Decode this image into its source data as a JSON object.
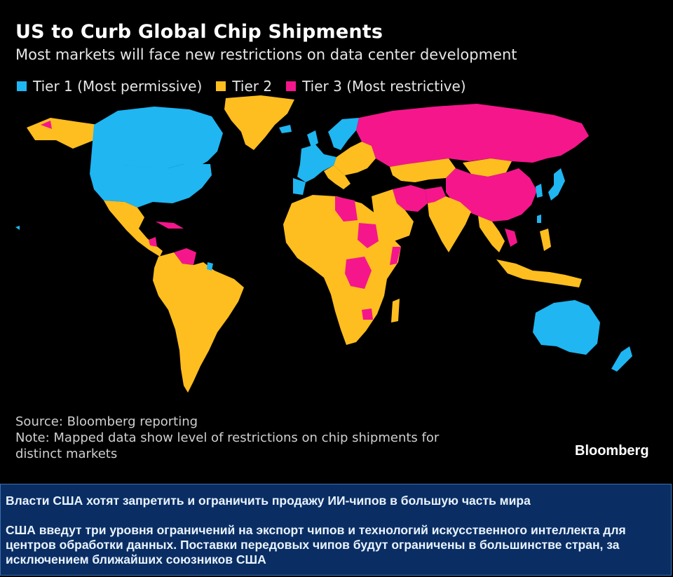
{
  "chart": {
    "title": "US to Curb Global Chip Shipments",
    "subtitle": "Most markets will face new restrictions on data center development",
    "legend": [
      {
        "label": "Tier 1 (Most permissive)",
        "color": "#1fb6f2"
      },
      {
        "label": "Tier 2",
        "color": "#ffbe1f"
      },
      {
        "label": "Tier 3 (Most restrictive)",
        "color": "#f5168c"
      }
    ],
    "source": "Source: Bloomberg reporting",
    "note_line1": "Note: Mapped data show level of restrictions on chip shipments for",
    "note_line2": "distinct markets",
    "brand": "Bloomberg"
  },
  "chart_data": {
    "type": "choropleth",
    "categories": [
      "Tier 1 (Most permissive)",
      "Tier 2",
      "Tier 3 (Most restrictive)"
    ]
  },
  "caption": {
    "headline": "Власти США хотят запретить и ограничить продажу ИИ-чипов в большую часть мира",
    "body": "США введут три уровня ограничений на экспорт чипов и технологий искусственного интеллекта для центров обработки данных. Поставки передовых чипов будут ограничены в большинстве стран, за исключением ближайших союзников США"
  }
}
